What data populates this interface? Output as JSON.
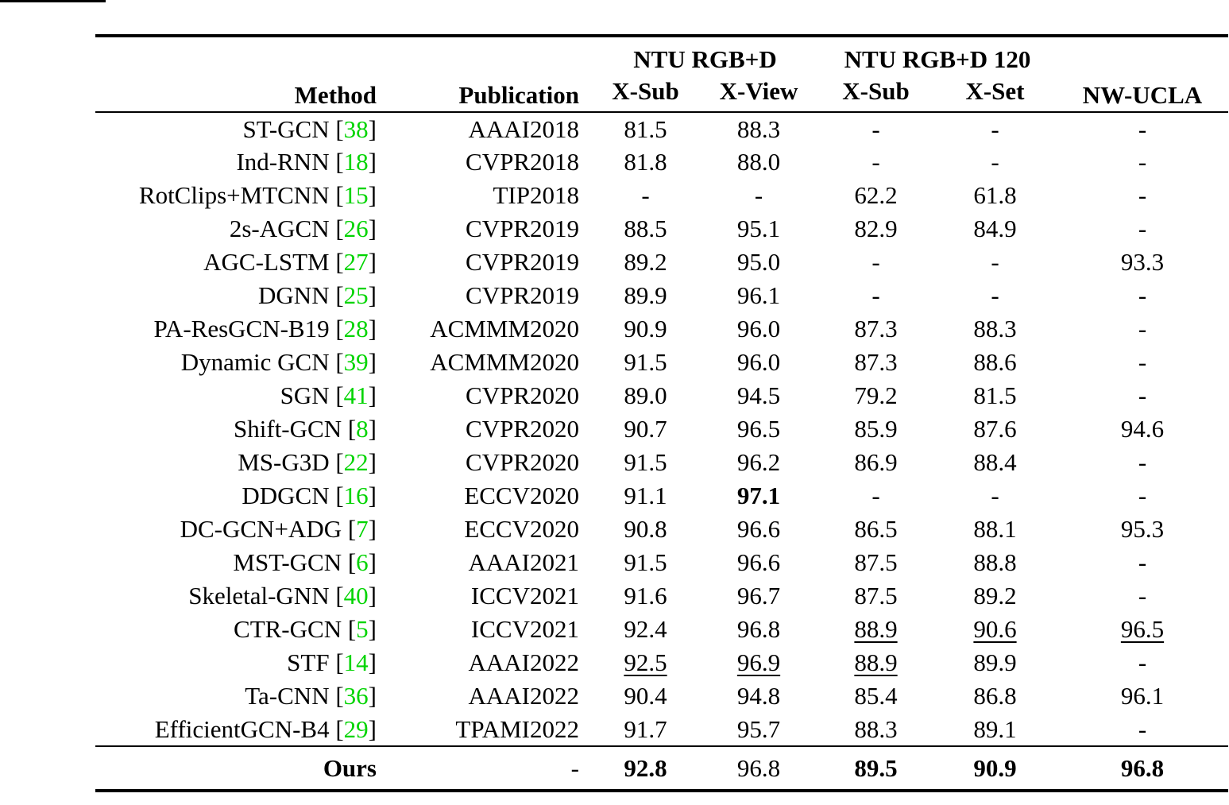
{
  "page": {
    "background": "#ffffff",
    "citation_color": "#00d400"
  },
  "table": {
    "header": {
      "method": "Method",
      "publication": "Publication",
      "group1": "NTU RGB+D",
      "group2": "NTU RGB+D 120",
      "nwucla": "NW-UCLA",
      "subcols": [
        "X-Sub",
        "X-View",
        "X-Sub",
        "X-Set"
      ]
    },
    "rows": [
      {
        "method": "ST-GCN",
        "ref": "38",
        "publication": "AAAI2018",
        "values": [
          {
            "text": "81.5"
          },
          {
            "text": "88.3"
          },
          {
            "text": "-"
          },
          {
            "text": "-"
          },
          {
            "text": "-"
          }
        ]
      },
      {
        "method": "Ind-RNN",
        "ref": "18",
        "publication": "CVPR2018",
        "values": [
          {
            "text": "81.8"
          },
          {
            "text": "88.0"
          },
          {
            "text": "-"
          },
          {
            "text": "-"
          },
          {
            "text": "-"
          }
        ]
      },
      {
        "method": "RotClips+MTCNN",
        "ref": "15",
        "publication": "TIP2018",
        "values": [
          {
            "text": "-"
          },
          {
            "text": "-"
          },
          {
            "text": "62.2"
          },
          {
            "text": "61.8"
          },
          {
            "text": "-"
          }
        ]
      },
      {
        "method": "2s-AGCN",
        "ref": "26",
        "publication": "CVPR2019",
        "values": [
          {
            "text": "88.5"
          },
          {
            "text": "95.1"
          },
          {
            "text": "82.9"
          },
          {
            "text": "84.9"
          },
          {
            "text": "-"
          }
        ]
      },
      {
        "method": "AGC-LSTM",
        "ref": "27",
        "publication": "CVPR2019",
        "values": [
          {
            "text": "89.2"
          },
          {
            "text": "95.0"
          },
          {
            "text": "-"
          },
          {
            "text": "-"
          },
          {
            "text": "93.3"
          }
        ]
      },
      {
        "method": "DGNN",
        "ref": "25",
        "publication": "CVPR2019",
        "values": [
          {
            "text": "89.9"
          },
          {
            "text": "96.1"
          },
          {
            "text": "-"
          },
          {
            "text": "-"
          },
          {
            "text": "-"
          }
        ]
      },
      {
        "method": "PA-ResGCN-B19",
        "ref": "28",
        "publication": "ACMMM2020",
        "values": [
          {
            "text": "90.9"
          },
          {
            "text": "96.0"
          },
          {
            "text": "87.3"
          },
          {
            "text": "88.3"
          },
          {
            "text": "-"
          }
        ]
      },
      {
        "method": "Dynamic GCN",
        "ref": "39",
        "publication": "ACMMM2020",
        "values": [
          {
            "text": "91.5"
          },
          {
            "text": "96.0"
          },
          {
            "text": "87.3"
          },
          {
            "text": "88.6"
          },
          {
            "text": "-"
          }
        ]
      },
      {
        "method": "SGN",
        "ref": "41",
        "publication": "CVPR2020",
        "values": [
          {
            "text": "89.0"
          },
          {
            "text": "94.5"
          },
          {
            "text": "79.2"
          },
          {
            "text": "81.5"
          },
          {
            "text": "-"
          }
        ]
      },
      {
        "method": "Shift-GCN",
        "ref": "8",
        "publication": "CVPR2020",
        "values": [
          {
            "text": "90.7"
          },
          {
            "text": "96.5"
          },
          {
            "text": "85.9"
          },
          {
            "text": "87.6"
          },
          {
            "text": "94.6"
          }
        ]
      },
      {
        "method": "MS-G3D",
        "ref": "22",
        "publication": "CVPR2020",
        "values": [
          {
            "text": "91.5"
          },
          {
            "text": "96.2"
          },
          {
            "text": "86.9"
          },
          {
            "text": "88.4"
          },
          {
            "text": "-"
          }
        ]
      },
      {
        "method": "DDGCN",
        "ref": "16",
        "publication": "ECCV2020",
        "values": [
          {
            "text": "91.1"
          },
          {
            "text": "97.1",
            "bold": true
          },
          {
            "text": "-"
          },
          {
            "text": "-"
          },
          {
            "text": "-"
          }
        ]
      },
      {
        "method": "DC-GCN+ADG",
        "ref": "7",
        "publication": "ECCV2020",
        "values": [
          {
            "text": "90.8"
          },
          {
            "text": "96.6"
          },
          {
            "text": "86.5"
          },
          {
            "text": "88.1"
          },
          {
            "text": "95.3"
          }
        ]
      },
      {
        "method": "MST-GCN",
        "ref": "6",
        "publication": "AAAI2021",
        "values": [
          {
            "text": "91.5"
          },
          {
            "text": "96.6"
          },
          {
            "text": "87.5"
          },
          {
            "text": "88.8"
          },
          {
            "text": "-"
          }
        ]
      },
      {
        "method": "Skeletal-GNN",
        "ref": "40",
        "publication": "ICCV2021",
        "values": [
          {
            "text": "91.6"
          },
          {
            "text": "96.7"
          },
          {
            "text": "87.5"
          },
          {
            "text": "89.2"
          },
          {
            "text": "-"
          }
        ]
      },
      {
        "method": "CTR-GCN",
        "ref": "5",
        "publication": "ICCV2021",
        "values": [
          {
            "text": "92.4"
          },
          {
            "text": "96.8"
          },
          {
            "text": "88.9",
            "underline": true
          },
          {
            "text": "90.6",
            "underline": true
          },
          {
            "text": "96.5",
            "underline": true
          }
        ]
      },
      {
        "method": "STF",
        "ref": "14",
        "publication": "AAAI2022",
        "values": [
          {
            "text": "92.5",
            "underline": true
          },
          {
            "text": "96.9",
            "underline": true
          },
          {
            "text": "88.9",
            "underline": true
          },
          {
            "text": "89.9"
          },
          {
            "text": "-"
          }
        ]
      },
      {
        "method": "Ta-CNN",
        "ref": "36",
        "publication": "AAAI2022",
        "values": [
          {
            "text": "90.4"
          },
          {
            "text": "94.8"
          },
          {
            "text": "85.4"
          },
          {
            "text": "86.8"
          },
          {
            "text": "96.1"
          }
        ]
      },
      {
        "method": "EfficientGCN-B4",
        "ref": "29",
        "publication": "TPAMI2022",
        "values": [
          {
            "text": "91.7"
          },
          {
            "text": "95.7"
          },
          {
            "text": "88.3"
          },
          {
            "text": "89.1"
          },
          {
            "text": "-"
          }
        ]
      }
    ],
    "ours": {
      "label": "Ours",
      "publication": "-",
      "values": [
        {
          "text": "92.8",
          "bold": true
        },
        {
          "text": "96.8",
          "bold": false
        },
        {
          "text": "89.5",
          "bold": true
        },
        {
          "text": "90.9",
          "bold": true
        },
        {
          "text": "96.8",
          "bold": true
        }
      ]
    }
  }
}
